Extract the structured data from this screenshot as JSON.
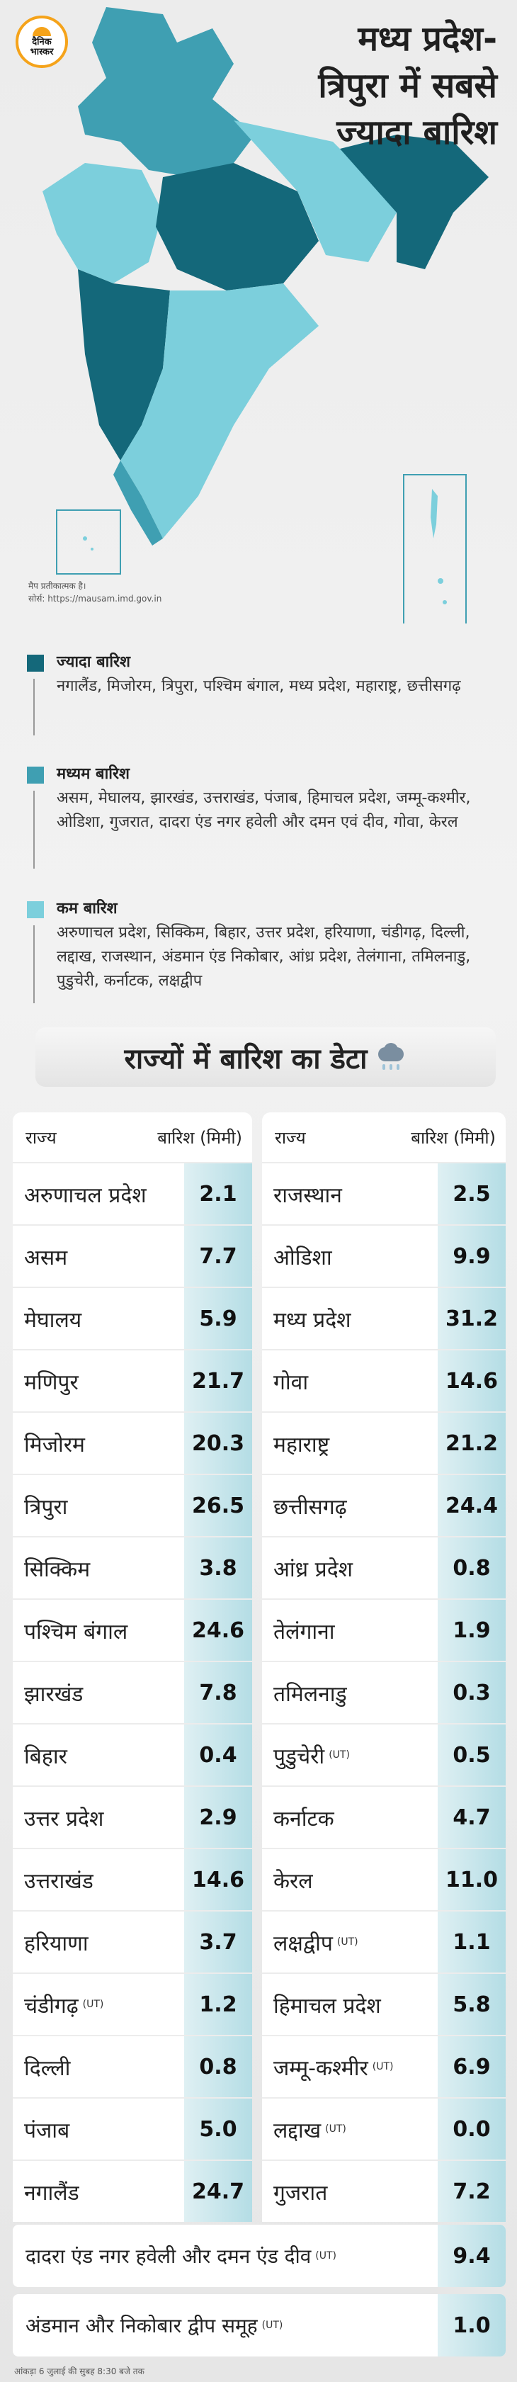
{
  "logo": {
    "line1": "दैनिक",
    "line2": "भास्कर"
  },
  "headline": {
    "line1": "मध्य प्रदेश-",
    "line2": "त्रिपुरा में सबसे",
    "line3": "ज्यादा बारिश"
  },
  "map_note": {
    "line1": "मैप प्रतीकात्मक है।",
    "line2": "सोर्स: https://mausam.imd.gov.in"
  },
  "colors": {
    "high": "#14687a",
    "medium": "#3f9fb2",
    "low": "#7ccfdc",
    "cell": "#c2e4ea"
  },
  "legend": [
    {
      "title": "ज्यादा बारिश",
      "desc": "नगालैंड, मिजोरम, त्रिपुरा, पश्चिम बंगाल, मध्य प्रदेश, महाराष्ट्र, छत्तीसगढ़",
      "color": "#14687a"
    },
    {
      "title": "मध्यम बारिश",
      "desc": "असम, मेघालय, झारखंड, उत्तराखंड, पंजाब, हिमाचल प्रदेश, जम्मू-कश्मीर, ओडिशा, गुजरात, दादरा एंड नगर हवेली और दमन एवं दीव, गोवा, केरल",
      "color": "#3f9fb2"
    },
    {
      "title": "कम बारिश",
      "desc": "अरुणाचल प्रदेश, सिक्किम, बिहार, उत्तर प्रदेश, हरियाणा, चंडीगढ़, दिल्ली, लद्दाख, राजस्थान, अंडमान एंड निकोबार, आंध्र प्रदेश, तेलंगाना, तमिलनाडु, पुडुचेरी, कर्नाटक, लक्षद्वीप",
      "color": "#7ccfdc"
    }
  ],
  "table": {
    "title": "राज्यों में बारिश का डेटा",
    "col_state": "राज्य",
    "col_rain": "बारिश (मिमी)",
    "left": [
      {
        "name": "अरुणाचल प्रदेश",
        "value": "2.1"
      },
      {
        "name": "असम",
        "value": "7.7"
      },
      {
        "name": "मेघालय",
        "value": "5.9"
      },
      {
        "name": "मणिपुर",
        "value": "21.7"
      },
      {
        "name": "मिजोरम",
        "value": "20.3"
      },
      {
        "name": "त्रिपुरा",
        "value": "26.5"
      },
      {
        "name": "सिक्किम",
        "value": "3.8"
      },
      {
        "name": "पश्चिम बंगाल",
        "value": "24.6"
      },
      {
        "name": "झारखंड",
        "value": "7.8"
      },
      {
        "name": "बिहार",
        "value": "0.4"
      },
      {
        "name": "उत्तर प्रदेश",
        "value": "2.9"
      },
      {
        "name": "उत्तराखंड",
        "value": "14.6"
      },
      {
        "name": "हरियाणा",
        "value": "3.7"
      },
      {
        "name": "चंडीगढ़",
        "ut": "(UT)",
        "value": "1.2"
      },
      {
        "name": "दिल्ली",
        "value": "0.8"
      },
      {
        "name": "पंजाब",
        "value": "5.0"
      },
      {
        "name": "नगालैंड",
        "value": "24.7"
      }
    ],
    "right": [
      {
        "name": "राजस्थान",
        "value": "2.5"
      },
      {
        "name": "ओडिशा",
        "value": "9.9"
      },
      {
        "name": "मध्य प्रदेश",
        "value": "31.2"
      },
      {
        "name": "गोवा",
        "value": "14.6"
      },
      {
        "name": "महाराष्ट्र",
        "value": "21.2"
      },
      {
        "name": "छत्तीसगढ़",
        "value": "24.4"
      },
      {
        "name": "आंध्र प्रदेश",
        "value": "0.8"
      },
      {
        "name": "तेलंगाना",
        "value": "1.9"
      },
      {
        "name": "तमिलनाडु",
        "value": "0.3"
      },
      {
        "name": "पुडुचेरी",
        "ut": "(UT)",
        "value": "0.5"
      },
      {
        "name": "कर्नाटक",
        "value": "4.7"
      },
      {
        "name": "केरल",
        "value": "11.0"
      },
      {
        "name": "लक्षद्वीप",
        "ut": "(UT)",
        "value": "1.1"
      },
      {
        "name": "हिमाचल प्रदेश",
        "value": "5.8"
      },
      {
        "name": "जम्मू-कश्मीर",
        "ut": "(UT)",
        "value": "6.9"
      },
      {
        "name": "लद्दाख",
        "ut": "(UT)",
        "value": "0.0"
      },
      {
        "name": "गुजरात",
        "value": "7.2"
      }
    ],
    "wide": [
      {
        "name": "दादरा एंड नगर हवेली और दमन एंड दीव",
        "ut": "(UT)",
        "value": "9.4"
      },
      {
        "name": "अंडमान और निकोबार द्वीप समूह",
        "ut": "(UT)",
        "value": "1.0"
      }
    ]
  },
  "footer": "आंकड़ा 6 जुलाई की सुबह 8:30 बजे तक"
}
